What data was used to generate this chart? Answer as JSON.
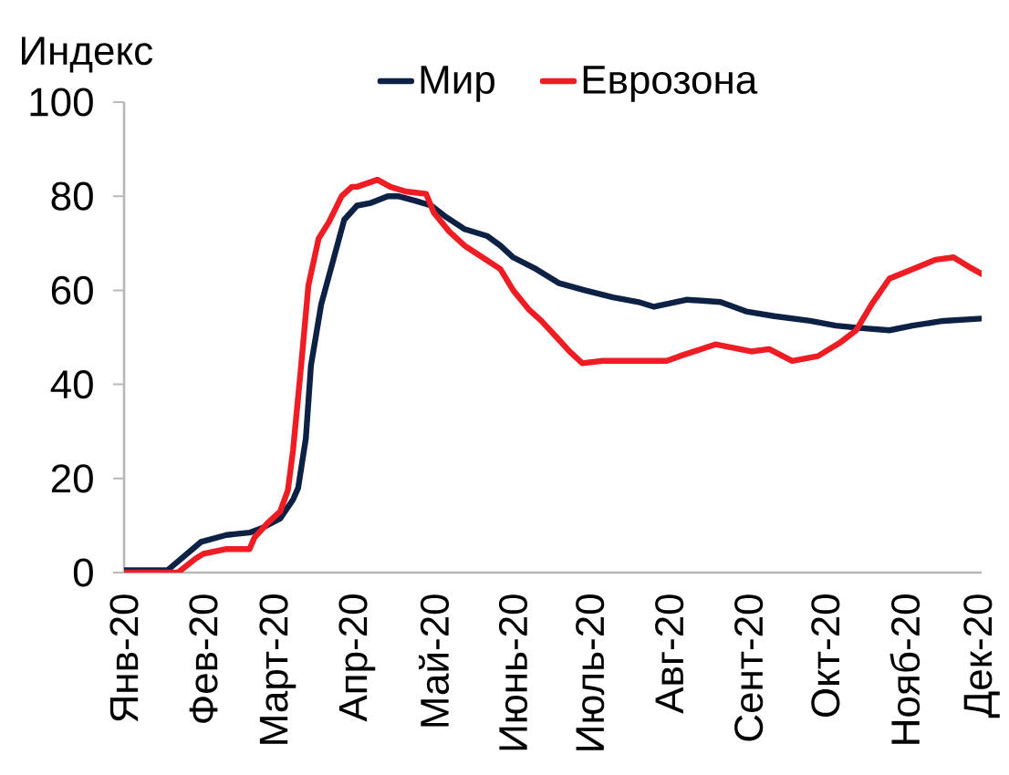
{
  "chart_data": {
    "type": "line",
    "ylabel": "Индекс",
    "legend": "top",
    "xlim": [
      "2020-01-01",
      "2020-12-01"
    ],
    "xticks": [
      {
        "value": "2020-01-01",
        "label": "Янв-20"
      },
      {
        "value": "2020-02-01",
        "label": "Фев-20"
      },
      {
        "value": "2020-03-01",
        "label": "Март-20"
      },
      {
        "value": "2020-04-01",
        "label": "Апр-20"
      },
      {
        "value": "2020-05-01",
        "label": "Май-20"
      },
      {
        "value": "2020-06-01",
        "label": "Июнь-20"
      },
      {
        "value": "2020-07-01",
        "label": "Июль-20"
      },
      {
        "value": "2020-08-01",
        "label": "Авг-20"
      },
      {
        "value": "2020-09-01",
        "label": "Сент-20"
      },
      {
        "value": "2020-10-01",
        "label": "Окт-20"
      },
      {
        "value": "2020-11-01",
        "label": "Нояб-20"
      },
      {
        "value": "2020-12-01",
        "label": "Дек-20"
      }
    ],
    "ylim": [
      0,
      100
    ],
    "yticks": [
      0,
      20,
      40,
      60,
      80,
      100
    ],
    "series": [
      {
        "name": "Мир",
        "color": "#0d2145",
        "x": [
          "2020-01-01",
          "2020-01-18",
          "2020-01-31",
          "2020-02-10",
          "2020-02-19",
          "2020-02-24",
          "2020-03-02",
          "2020-03-07",
          "2020-03-09",
          "2020-03-12",
          "2020-03-14",
          "2020-03-18",
          "2020-03-23",
          "2020-03-27",
          "2020-04-01",
          "2020-04-06",
          "2020-04-13",
          "2020-04-17",
          "2020-04-24",
          "2020-04-30",
          "2020-05-06",
          "2020-05-13",
          "2020-05-22",
          "2020-05-27",
          "2020-06-01",
          "2020-06-10",
          "2020-06-19",
          "2020-06-29",
          "2020-07-10",
          "2020-07-20",
          "2020-07-26",
          "2020-08-08",
          "2020-08-21",
          "2020-08-31",
          "2020-09-11",
          "2020-09-25",
          "2020-10-05",
          "2020-10-14",
          "2020-10-26",
          "2020-11-04",
          "2020-11-16",
          "2020-12-01"
        ],
        "values": [
          0.5,
          0.5,
          6.5,
          8,
          8.5,
          9.5,
          11.5,
          15.5,
          18,
          28.5,
          44,
          57,
          67,
          75,
          78,
          78.5,
          80,
          80,
          79,
          78,
          75.5,
          73,
          71.5,
          69.5,
          67,
          64.5,
          61.5,
          60,
          58.5,
          57.5,
          56.5,
          58,
          57.5,
          55.5,
          54.5,
          53.5,
          52.5,
          52,
          51.5,
          52.5,
          53.5,
          54
        ]
      },
      {
        "name": "Еврозона",
        "color": "#ee1d23",
        "x": [
          "2020-01-01",
          "2020-01-22",
          "2020-01-29",
          "2020-02-01",
          "2020-02-10",
          "2020-02-19",
          "2020-02-21",
          "2020-02-26",
          "2020-03-02",
          "2020-03-05",
          "2020-03-07",
          "2020-03-10",
          "2020-03-13",
          "2020-03-17",
          "2020-03-21",
          "2020-03-26",
          "2020-03-30",
          "2020-04-01",
          "2020-04-09",
          "2020-04-14",
          "2020-04-20",
          "2020-04-28",
          "2020-05-01",
          "2020-05-07",
          "2020-05-13",
          "2020-05-20",
          "2020-05-27",
          "2020-06-01",
          "2020-06-07",
          "2020-06-12",
          "2020-06-18",
          "2020-06-23",
          "2020-06-28",
          "2020-07-06",
          "2020-07-17",
          "2020-07-27",
          "2020-07-31",
          "2020-08-05",
          "2020-08-19",
          "2020-09-02",
          "2020-09-09",
          "2020-09-18",
          "2020-09-28",
          "2020-10-07",
          "2020-10-13",
          "2020-10-19",
          "2020-10-26",
          "2020-11-04",
          "2020-11-13",
          "2020-11-20",
          "2020-11-26",
          "2020-12-01"
        ],
        "values": [
          0,
          0,
          3,
          4,
          5,
          5,
          7.5,
          10.5,
          13,
          17.5,
          26,
          43,
          61,
          71,
          74.5,
          80,
          82,
          82,
          83.5,
          82,
          81,
          80.5,
          76.5,
          72.5,
          69.5,
          67,
          64.5,
          60,
          56,
          53.5,
          50,
          47,
          44.5,
          45,
          45,
          45,
          45,
          46,
          48.5,
          47,
          47.5,
          45,
          46,
          49,
          51.5,
          57,
          62.5,
          64.5,
          66.5,
          67,
          65,
          63.5
        ]
      }
    ]
  }
}
